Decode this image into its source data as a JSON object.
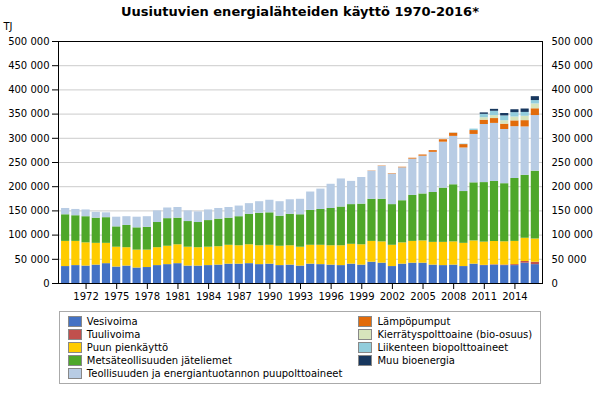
{
  "chart_data": {
    "type": "bar",
    "stacked": true,
    "title": "Uusiutuvien energialähteiden käyttö 1970-2016*",
    "ylabel": "TJ",
    "x": [
      1970,
      1971,
      1972,
      1973,
      1974,
      1975,
      1976,
      1977,
      1978,
      1979,
      1980,
      1981,
      1982,
      1983,
      1984,
      1985,
      1986,
      1987,
      1988,
      1989,
      1990,
      1991,
      1992,
      1993,
      1994,
      1995,
      1996,
      1997,
      1998,
      1999,
      2000,
      2001,
      2002,
      2003,
      2004,
      2005,
      2006,
      2007,
      2008,
      2009,
      2010,
      2011,
      2012,
      2013,
      2014,
      2015,
      2016
    ],
    "series": [
      {
        "name": "Vesivoima",
        "color": "#4472C4",
        "values": [
          35000,
          37000,
          36000,
          38000,
          41000,
          34000,
          36000,
          32000,
          33000,
          37000,
          39000,
          41000,
          36000,
          36000,
          37000,
          38000,
          40000,
          40000,
          41000,
          39000,
          40000,
          37000,
          38000,
          36000,
          40000,
          39000,
          38000,
          37000,
          40000,
          38000,
          44000,
          42000,
          35000,
          40000,
          42000,
          42000,
          38000,
          37000,
          38000,
          35000,
          40000,
          37000,
          38000,
          37000,
          37000,
          42000,
          39000
        ]
      },
      {
        "name": "Tuulivoima",
        "color": "#C0504D",
        "values": [
          0,
          0,
          0,
          0,
          0,
          0,
          0,
          0,
          0,
          0,
          0,
          0,
          0,
          0,
          0,
          0,
          0,
          0,
          0,
          0,
          0,
          0,
          0,
          0,
          0,
          0,
          0,
          0,
          0,
          0,
          0,
          0,
          0,
          0,
          0,
          0,
          0,
          0,
          0,
          0,
          0,
          500,
          800,
          1200,
          2000,
          3500,
          5000
        ]
      },
      {
        "name": "Puun pienkäyttö",
        "color": "#FFCC00",
        "values": [
          52000,
          50000,
          48000,
          45000,
          42000,
          41000,
          38000,
          37000,
          36000,
          37000,
          38000,
          39000,
          39000,
          38000,
          38000,
          38000,
          39000,
          38000,
          39000,
          39000,
          39000,
          40000,
          40000,
          39000,
          39000,
          40000,
          40000,
          41000,
          41000,
          42000,
          43000,
          44000,
          44000,
          44000,
          45000,
          46000,
          47000,
          48000,
          48000,
          48000,
          48000,
          48000,
          48000,
          48000,
          48000,
          48000,
          48000
        ]
      },
      {
        "name": "Metsäteollisuuden jäteliemet",
        "color": "#4EA72A",
        "values": [
          55000,
          53000,
          54000,
          52000,
          53000,
          42000,
          46000,
          46000,
          47000,
          52000,
          57000,
          55000,
          53000,
          52000,
          55000,
          57000,
          56000,
          60000,
          63000,
          67000,
          67000,
          62000,
          65000,
          67000,
          72000,
          74000,
          77000,
          80000,
          82000,
          84000,
          87000,
          88000,
          84000,
          87000,
          95000,
          97000,
          103000,
          112000,
          118000,
          107000,
          120000,
          123000,
          124000,
          120000,
          130000,
          130000,
          140000
        ]
      },
      {
        "name": "Teollisuuden ja energiantuotannon puupolttoaineet",
        "color": "#B8CCE4",
        "values": [
          13000,
          13000,
          14000,
          12000,
          10000,
          20000,
          18000,
          22000,
          22000,
          24000,
          22000,
          22000,
          22000,
          22000,
          22000,
          22000,
          22000,
          22000,
          22000,
          24000,
          26000,
          30000,
          30000,
          32000,
          38000,
          42000,
          50000,
          58000,
          48000,
          55000,
          58000,
          68000,
          63000,
          68000,
          75000,
          78000,
          83000,
          95000,
          100000,
          90000,
          100000,
          120000,
          120000,
          112000,
          107000,
          100000,
          115000
        ]
      },
      {
        "name": "Lämpöpumput",
        "color": "#E26B0A",
        "values": [
          0,
          0,
          0,
          0,
          0,
          0,
          0,
          0,
          0,
          0,
          0,
          0,
          0,
          0,
          0,
          0,
          0,
          0,
          0,
          0,
          0,
          0,
          0,
          0,
          0,
          0,
          0,
          0,
          0,
          0,
          500,
          700,
          900,
          1200,
          1800,
          2500,
          3500,
          5000,
          6500,
          7000,
          8000,
          9000,
          10000,
          11000,
          12000,
          13000,
          14000
        ]
      },
      {
        "name": "Kierrätyspolttoaine (bio-osuus)",
        "color": "#D7E4BC",
        "values": [
          0,
          0,
          0,
          0,
          0,
          0,
          0,
          0,
          0,
          0,
          0,
          0,
          0,
          0,
          0,
          0,
          0,
          0,
          0,
          0,
          0,
          0,
          0,
          0,
          0,
          0,
          0,
          0,
          0,
          0,
          0,
          0,
          0,
          0,
          0,
          0,
          0,
          0,
          0,
          0,
          0,
          5000,
          6000,
          7000,
          8000,
          9000,
          10000
        ]
      },
      {
        "name": "Liikenteen biopolttoaineet",
        "color": "#92CDDC",
        "values": [
          0,
          0,
          0,
          0,
          0,
          0,
          0,
          0,
          0,
          0,
          0,
          0,
          0,
          0,
          0,
          0,
          0,
          0,
          0,
          0,
          0,
          0,
          0,
          0,
          0,
          0,
          0,
          0,
          0,
          0,
          0,
          0,
          0,
          0,
          0,
          0,
          0,
          0,
          500,
          1000,
          3000,
          7000,
          9000,
          10000,
          9000,
          8000,
          7000
        ]
      },
      {
        "name": "Muu bioenergia",
        "color": "#17375E",
        "values": [
          0,
          0,
          0,
          0,
          0,
          0,
          0,
          0,
          0,
          0,
          0,
          0,
          0,
          0,
          0,
          0,
          0,
          0,
          0,
          0,
          0,
          0,
          0,
          0,
          0,
          0,
          0,
          0,
          0,
          0,
          0,
          0,
          0,
          0,
          0,
          0,
          0,
          0,
          0,
          0,
          0,
          3000,
          4000,
          5000,
          6000,
          7000,
          8000
        ]
      }
    ],
    "xlim": [
      1969.3,
      2016.7
    ],
    "xticks": [
      1972,
      1975,
      1978,
      1981,
      1984,
      1987,
      1990,
      1993,
      1996,
      1999,
      2002,
      2005,
      2008,
      2011,
      2014
    ],
    "ylim": [
      0,
      500000
    ],
    "yticks": [
      0,
      {
        "value": 50000,
        "label": "50 000"
      },
      {
        "value": 100000,
        "label": "100 000"
      },
      {
        "value": 150000,
        "label": "150 000"
      },
      {
        "value": 200000,
        "label": "200 000"
      },
      {
        "value": 250000,
        "label": "250 000"
      },
      {
        "value": 300000,
        "label": "300 000"
      },
      {
        "value": 350000,
        "label": "350 000"
      },
      {
        "value": 400000,
        "label": "400 000"
      },
      {
        "value": 450000,
        "label": "450 000"
      },
      {
        "value": 500000,
        "label": "500 000"
      }
    ],
    "y2lim": [
      0,
      500000
    ],
    "y2ticks": [
      0,
      {
        "value": 50000,
        "label": "50 000"
      },
      {
        "value": 100000,
        "label": "100 000"
      },
      {
        "value": 150000,
        "label": "150 000"
      },
      {
        "value": 200000,
        "label": "200 000"
      },
      {
        "value": 250000,
        "label": "250 000"
      },
      {
        "value": 300000,
        "label": "300 000"
      },
      {
        "value": 350000,
        "label": "350 000"
      },
      {
        "value": 400000,
        "label": "400 000"
      },
      {
        "value": 450000,
        "label": "450 000"
      },
      {
        "value": 500000,
        "label": "500 000"
      }
    ],
    "grid": true,
    "legend": "bottom"
  }
}
